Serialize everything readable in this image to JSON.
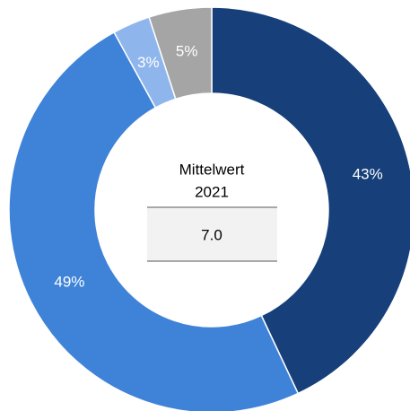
{
  "chart_data": {
    "type": "pie",
    "values": [
      43,
      49,
      3,
      5
    ],
    "value_labels": [
      "43%",
      "49%",
      "3%",
      "5%"
    ],
    "colors": [
      "#17407a",
      "#3f83d9",
      "#8fb6ec",
      "#a5a5a5"
    ],
    "center_title": "Mittelwert",
    "center_subtitle": "2021",
    "center_value": "7.0"
  }
}
